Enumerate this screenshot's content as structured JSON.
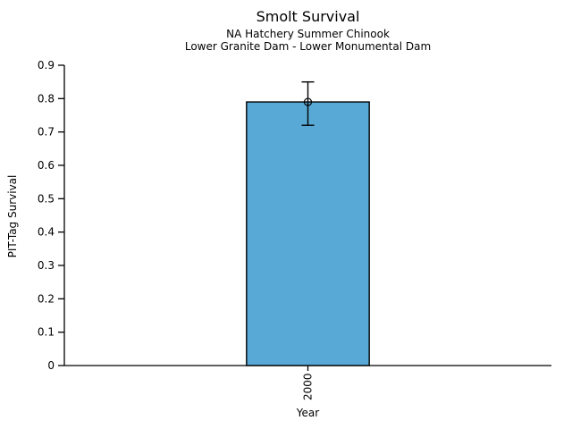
{
  "chart_data": {
    "type": "bar",
    "title": "Smolt Survival",
    "subtitle_line1": "NA Hatchery Summer Chinook",
    "subtitle_line2": "Lower Granite Dam - Lower Monumental Dam",
    "xlabel": "Year",
    "ylabel": "PIT-Tag Survival",
    "categories": [
      "2000"
    ],
    "values": [
      0.79
    ],
    "error_low": [
      0.72
    ],
    "error_high": [
      0.85
    ],
    "ylim": [
      0,
      0.9
    ],
    "yticks": [
      0,
      0.1,
      0.2,
      0.3,
      0.4,
      0.5,
      0.6,
      0.7,
      0.8,
      0.9
    ],
    "ytick_labels": [
      "0",
      "0.1",
      "0.2",
      "0.3",
      "0.4",
      "0.5",
      "0.6",
      "0.7",
      "0.8",
      "0.9"
    ],
    "bar_color": "#58A9D5",
    "bar_edge_color": "#000000",
    "axis_color": "#000000",
    "marker": "open-circle",
    "grid": false,
    "legend_position": "none"
  }
}
